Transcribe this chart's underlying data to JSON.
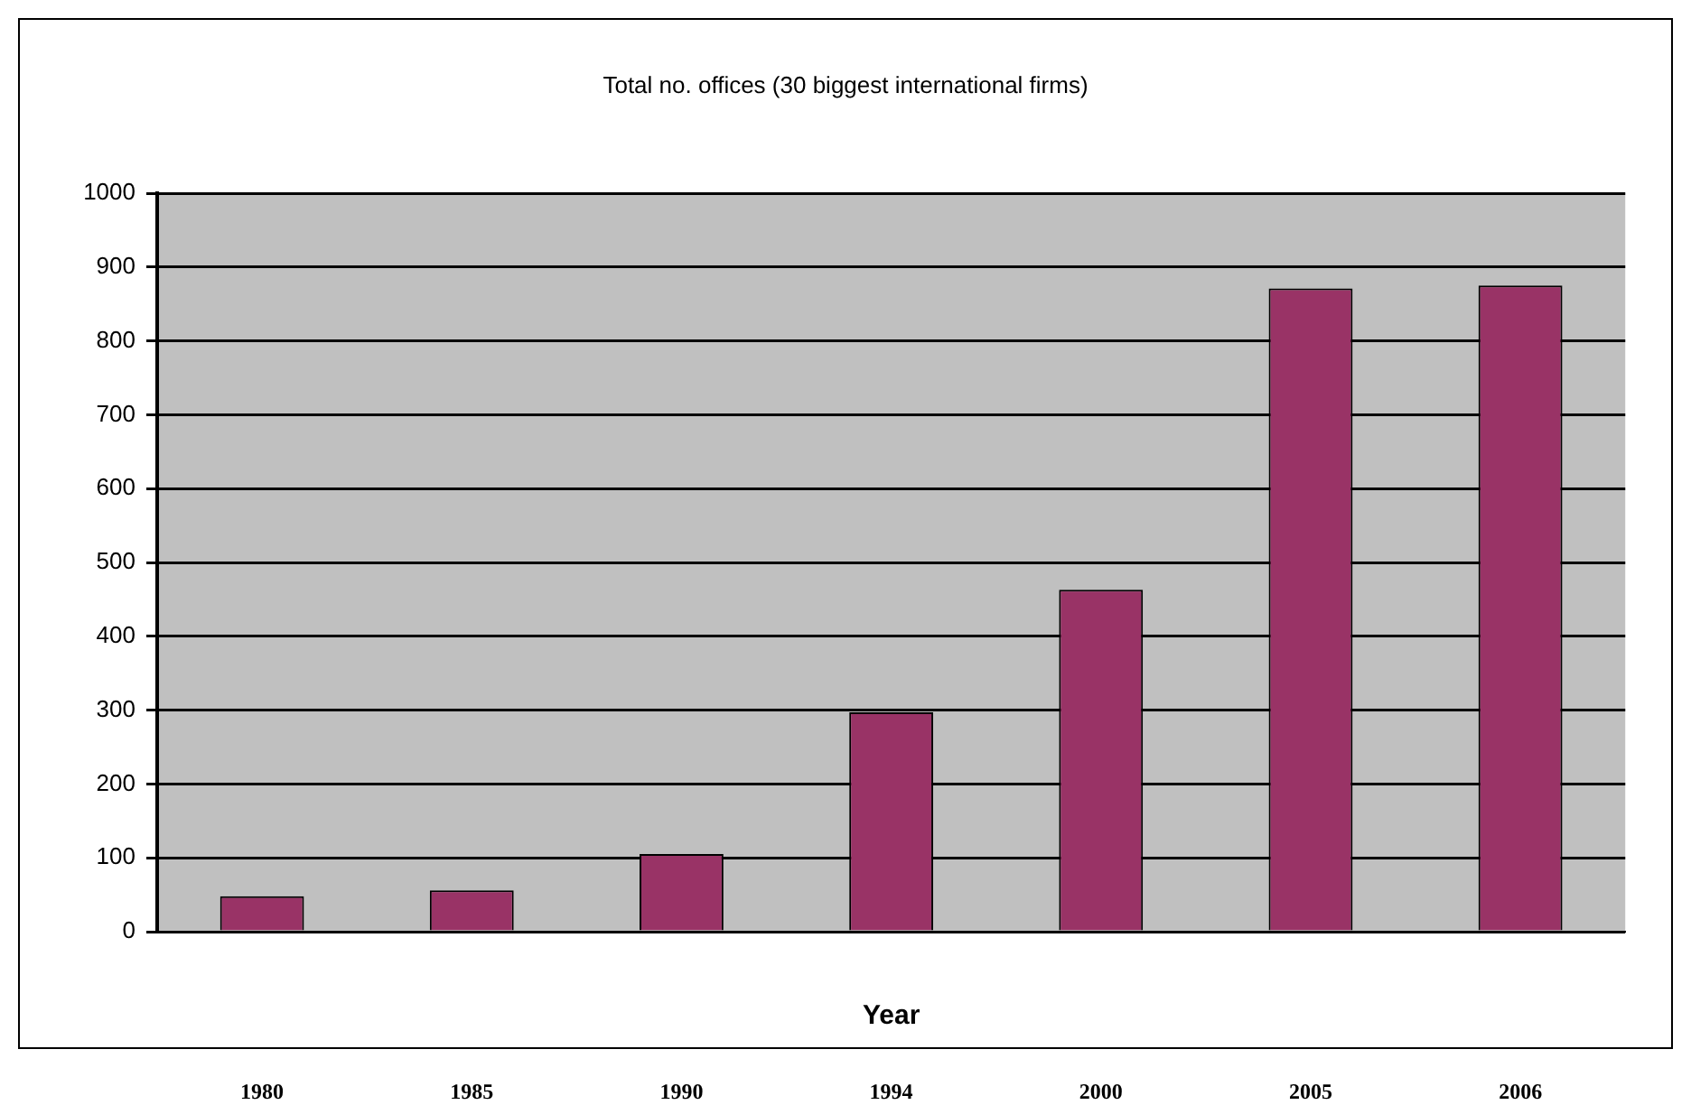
{
  "chart_data": {
    "type": "bar",
    "title": "Total no. offices (30 biggest international firms)",
    "xlabel": "Year",
    "categories": [
      "1980",
      "1985",
      "1990",
      "1994",
      "2000",
      "2005",
      "2006"
    ],
    "values": [
      48,
      56,
      105,
      297,
      463,
      871,
      875
    ],
    "color": "#993366",
    "ylim": [
      0,
      1000
    ],
    "yticks": [
      0,
      100,
      200,
      300,
      400,
      500,
      600,
      700,
      800,
      900,
      1000
    ],
    "grid": "y",
    "legend": false
  }
}
